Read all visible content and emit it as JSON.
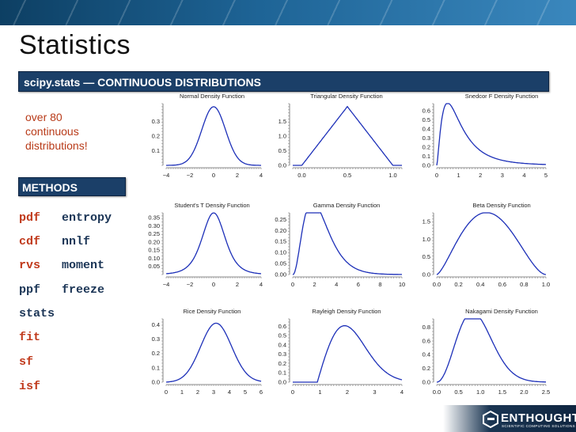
{
  "slide": {
    "title": "Statistics",
    "subtitle_bar": "scipy.stats — CONTINUOUS DISTRIBUTIONS",
    "over_text": "over 80 continuous distributions!",
    "methods_label": "METHODS",
    "methods": [
      {
        "name": "pdf",
        "color": "red"
      },
      {
        "name": "entropy",
        "color": "dark"
      },
      {
        "name": "cdf",
        "color": "red"
      },
      {
        "name": "nnlf",
        "color": "dark"
      },
      {
        "name": "rvs",
        "color": "red"
      },
      {
        "name": "moment",
        "color": "dark"
      },
      {
        "name": "ppf",
        "color": "dark"
      },
      {
        "name": "freeze",
        "color": "dark"
      },
      {
        "name": "stats",
        "color": "dark"
      },
      {
        "name": "fit",
        "color": "red"
      },
      {
        "name": "sf",
        "color": "red"
      },
      {
        "name": "isf",
        "color": "red"
      }
    ],
    "logo_text": "ENTHOUGHT",
    "logo_sub": "SCIENTIFIC COMPUTING SOLUTIONS"
  },
  "colors": {
    "accent_red": "#c0391b",
    "method_dark": "#1b3556",
    "bar_blue": "#1b3f68",
    "curve_blue": "#1c2fb8"
  },
  "chart_data": [
    {
      "type": "line",
      "title": "Normal Density Function",
      "dist": "normal",
      "xlim": [
        -4,
        4
      ],
      "xticks": [
        "−4",
        "−2",
        "0",
        "2",
        "4"
      ],
      "yticks": [
        "0.1",
        "0.2",
        "0.3"
      ],
      "ylim": [
        0,
        0.42
      ]
    },
    {
      "type": "line",
      "title": "Triangular Density Function",
      "dist": "triangular",
      "xlim": [
        -0.1,
        1.1
      ],
      "xticks": [
        "0.0",
        "0.5",
        "1.0"
      ],
      "yticks": [
        "0.0",
        "0.5",
        "1.0",
        "1.5"
      ],
      "ylim": [
        0,
        2.1
      ]
    },
    {
      "type": "line",
      "title": "Snedcor F Density Function",
      "dist": "f",
      "xlim": [
        0,
        5
      ],
      "xticks": [
        "0",
        "1",
        "2",
        "3",
        "4",
        "5"
      ],
      "yticks": [
        "0.0",
        "0.1",
        "0.2",
        "0.3",
        "0.4",
        "0.5",
        "0.6"
      ],
      "ylim": [
        0,
        0.68
      ]
    },
    {
      "type": "line",
      "title": "Student's T Density Function",
      "dist": "t",
      "xlim": [
        -4,
        4
      ],
      "xticks": [
        "−4",
        "−2",
        "0",
        "2",
        "4"
      ],
      "yticks": [
        "0.05",
        "0.10",
        "0.15",
        "0.20",
        "0.25",
        "0.30",
        "0.35"
      ],
      "ylim": [
        0,
        0.38
      ]
    },
    {
      "type": "line",
      "title": "Gamma Density Function",
      "dist": "gamma",
      "xlim": [
        0,
        10
      ],
      "xticks": [
        "0",
        "2",
        "4",
        "6",
        "8",
        "10"
      ],
      "yticks": [
        "0.00",
        "0.05",
        "0.10",
        "0.15",
        "0.20",
        "0.25"
      ],
      "ylim": [
        0,
        0.28
      ]
    },
    {
      "type": "line",
      "title": "Beta Density Function",
      "dist": "beta",
      "xlim": [
        0,
        1
      ],
      "xticks": [
        "0.0",
        "0.2",
        "0.4",
        "0.6",
        "0.8",
        "1.0"
      ],
      "yticks": [
        "0.0",
        "0.5",
        "1.0",
        "1.5"
      ],
      "ylim": [
        0,
        1.75
      ]
    },
    {
      "type": "line",
      "title": "Rice Density Function",
      "dist": "rice",
      "xlim": [
        0,
        6
      ],
      "xticks": [
        "0",
        "1",
        "2",
        "3",
        "4",
        "5",
        "6"
      ],
      "yticks": [
        "0.0",
        "0.1",
        "0.2",
        "0.3",
        "0.4"
      ],
      "ylim": [
        0,
        0.44
      ]
    },
    {
      "type": "line",
      "title": "Rayleigh Density Function",
      "dist": "rayleigh",
      "xlim": [
        0,
        4
      ],
      "xticks": [
        "0",
        "1",
        "2",
        "3",
        "4"
      ],
      "yticks": [
        "0.0",
        "0.1",
        "0.2",
        "0.3",
        "0.4",
        "0.5",
        "0.6"
      ],
      "ylim": [
        0,
        0.68
      ]
    },
    {
      "type": "line",
      "title": "Nakagami Density Function",
      "dist": "nakagami",
      "xlim": [
        0,
        2.5
      ],
      "xticks": [
        "0.0",
        "0.5",
        "1.0",
        "1.5",
        "2.0",
        "2.5"
      ],
      "yticks": [
        "0.0",
        "0.2",
        "0.4",
        "0.6",
        "0.8"
      ],
      "ylim": [
        0,
        0.92
      ]
    }
  ]
}
